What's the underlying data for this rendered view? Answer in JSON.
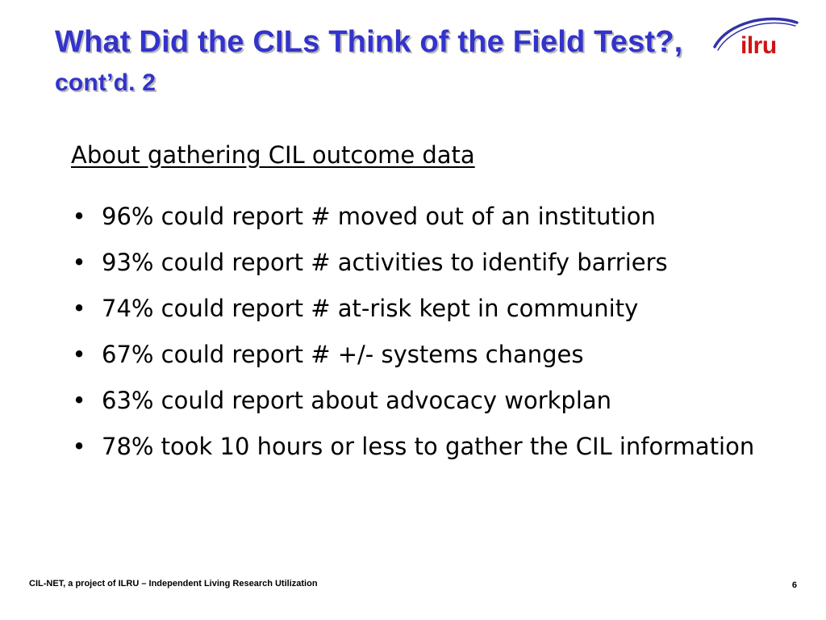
{
  "slide": {
    "title": {
      "main": "What Did the CILs Think of the Field Test?,",
      "suffix": "cont’d. 2",
      "color": "#3333cc"
    },
    "logo": {
      "text": "ilru",
      "text_color": "#d01414",
      "swoosh_color": "#3333aa"
    },
    "subheading": "About gathering CIL outcome data",
    "bullets": [
      {
        "marker": "•",
        "text": "96% could report # moved out of an institution"
      },
      {
        "marker": "•",
        "text": "93% could report # activities to identify barriers"
      },
      {
        "marker": "•",
        "text": "74% could report # at-risk kept in community"
      },
      {
        "marker": "•",
        "text": "67% could report # +/- systems changes"
      },
      {
        "marker": "•",
        "text": "63% could report about advocacy workplan"
      },
      {
        "marker": "•",
        "text": "78% took 10 hours or less to gather the CIL information"
      }
    ],
    "footer": {
      "left": "CIL-NET, a project of ILRU – Independent Living Research Utilization",
      "page_number": "6"
    }
  }
}
